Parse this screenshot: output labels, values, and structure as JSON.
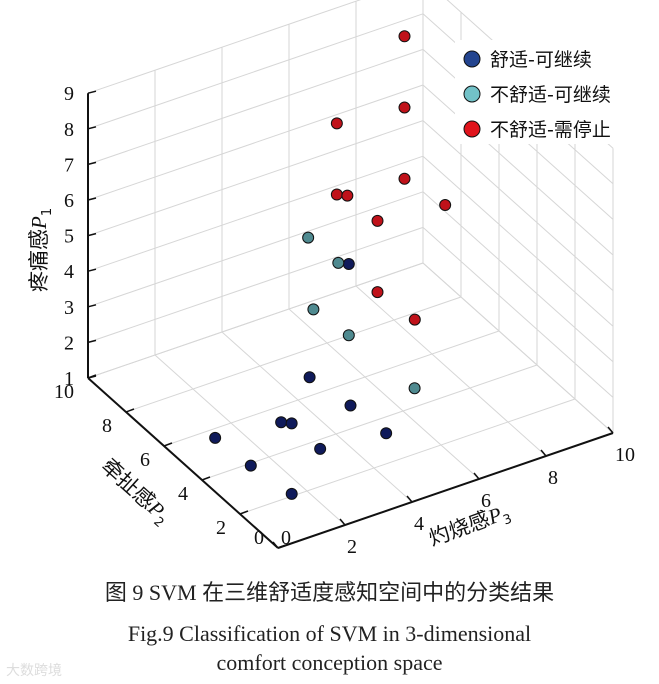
{
  "chart_data": {
    "type": "scatter3d",
    "axes": {
      "p1": {
        "label": "疼痛感",
        "symbol": "P",
        "sub": "1",
        "range": [
          1,
          9
        ],
        "ticks": [
          "1",
          "2",
          "3",
          "4",
          "5",
          "6",
          "7",
          "8",
          "9"
        ]
      },
      "p2": {
        "label": "牵扯感",
        "symbol": "P",
        "sub": "2",
        "range": [
          0,
          10
        ],
        "ticks": [
          "0",
          "2",
          "4",
          "6",
          "8",
          "10"
        ]
      },
      "p3": {
        "label": "灼烧感",
        "symbol": "P",
        "sub": "3",
        "range": [
          0,
          10
        ],
        "ticks": [
          "0",
          "2",
          "4",
          "6",
          "8",
          "10"
        ]
      }
    },
    "grid": true,
    "legend_position": "top-right",
    "series": [
      {
        "name": "舒适-可继续",
        "color": "#0f1a5a",
        "legend_color": "#23448f",
        "points": [
          [
            2.1,
            1.6,
            1
          ],
          [
            3.9,
            1.4,
            1
          ],
          [
            5.6,
            1.3,
            1
          ],
          [
            3.6,
            3.3,
            1
          ],
          [
            5.3,
            3.1,
            1
          ],
          [
            5.1,
            3.3,
            1
          ],
          [
            3.3,
            5.1,
            1
          ],
          [
            5.0,
            5.0,
            1
          ],
          [
            6.8,
            4.8,
            1
          ],
          [
            6.5,
            5.8,
            4
          ]
        ]
      },
      {
        "name": "不舒适-可继续",
        "color": "#4f8a90",
        "legend_color": "#72c2c8",
        "points": [
          [
            6.7,
            4.7,
            5
          ],
          [
            6.7,
            5.6,
            4
          ],
          [
            6.6,
            4.8,
            3
          ],
          [
            6.5,
            5.8,
            2
          ],
          [
            4.8,
            6.8,
            1
          ]
        ]
      },
      {
        "name": "不舒适-需停止",
        "color": "#c0121a",
        "legend_color": "#e0141c",
        "points": [
          [
            7.8,
            8.2,
            9
          ],
          [
            7.8,
            8.2,
            7
          ],
          [
            6.6,
            5.5,
            8
          ],
          [
            7.8,
            8.2,
            5
          ],
          [
            6.6,
            5.5,
            6
          ],
          [
            6.4,
            5.7,
            6
          ],
          [
            6.4,
            6.6,
            5
          ],
          [
            7.6,
            9.3,
            4
          ],
          [
            6.4,
            6.6,
            3
          ],
          [
            6.2,
            7.6,
            2
          ]
        ]
      }
    ],
    "point_order": "[P2, P3, P1]"
  },
  "caption": {
    "cn": "图 9 SVM 在三维舒适度感知空间中的分类结果",
    "en_line1": "Fig.9 Classification of SVM in 3-dimensional",
    "en_line2": "comfort conception space"
  },
  "watermark": "大数跨境"
}
